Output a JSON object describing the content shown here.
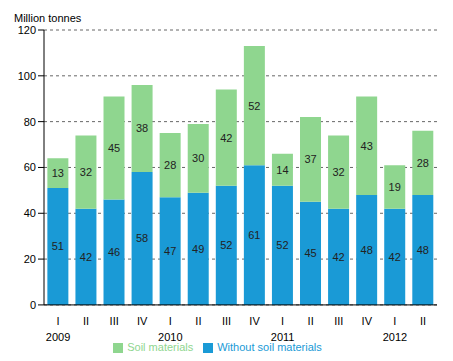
{
  "chart_data": {
    "type": "bar",
    "y_label": "Million tonnes",
    "categories": [
      "I",
      "II",
      "III",
      "IV",
      "I",
      "II",
      "III",
      "IV",
      "I",
      "II",
      "III",
      "IV",
      "I",
      "II"
    ],
    "category_groups": [
      "2009",
      null,
      null,
      null,
      "2010",
      null,
      null,
      null,
      "2011",
      null,
      null,
      null,
      "2012",
      null
    ],
    "series": [
      {
        "name": "Without soil materials",
        "color": "#1a9ad6",
        "values": [
          51,
          42,
          46,
          58,
          47,
          49,
          52,
          61,
          52,
          45,
          42,
          48,
          42,
          48
        ]
      },
      {
        "name": "Soil materials",
        "color": "#8fd68f",
        "values": [
          13,
          32,
          45,
          38,
          28,
          30,
          42,
          52,
          14,
          37,
          32,
          43,
          19,
          28
        ]
      }
    ],
    "ylim": [
      0,
      120
    ],
    "yticks": [
      0,
      20,
      40,
      60,
      80,
      100,
      120
    ],
    "grid": true,
    "stacked": true,
    "data_labels": true,
    "legend": "bottom"
  }
}
